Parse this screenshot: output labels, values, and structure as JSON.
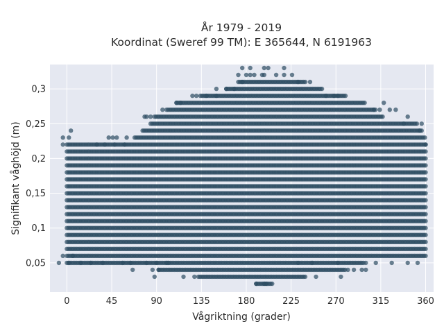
{
  "chart_data": {
    "type": "scatter",
    "title_lines": [
      "År 1979 - 2019",
      "Koordinat (Sweref 99 TM): E 365644, N 6191963"
    ],
    "xlabel": "Vågriktning (grader)",
    "ylabel": "Signifikant våghöjd (m)",
    "xlim": [
      -17,
      368
    ],
    "ylim": [
      0.008,
      0.335
    ],
    "xticks": [
      0,
      45,
      90,
      135,
      180,
      225,
      270,
      315,
      360
    ],
    "xtick_labels": [
      "0",
      "45",
      "90",
      "135",
      "180",
      "225",
      "270",
      "315",
      "360"
    ],
    "yticks": [
      0.05,
      0.1,
      0.15,
      0.2,
      0.25,
      0.3
    ],
    "ytick_labels": [
      "0,05",
      "0,1",
      "0,15",
      "0,2",
      "0,25",
      "0,3"
    ],
    "grid": true,
    "marker_color": "#2e4d63",
    "plot_bg": "#e5e8f1",
    "bands": [
      {
        "y": 0.02,
        "x_min": 190,
        "x_max": 205
      },
      {
        "y": 0.03,
        "x_min": 132,
        "x_max": 240
      },
      {
        "y": 0.04,
        "x_min": 92,
        "x_max": 280
      },
      {
        "y": 0.05,
        "x_min": 0,
        "x_max": 298
      },
      {
        "y": 0.06,
        "x_min": 0,
        "x_max": 360
      },
      {
        "y": 0.07,
        "x_min": 0,
        "x_max": 360
      },
      {
        "y": 0.08,
        "x_min": 0,
        "x_max": 360
      },
      {
        "y": 0.09,
        "x_min": 0,
        "x_max": 360
      },
      {
        "y": 0.1,
        "x_min": 0,
        "x_max": 360
      },
      {
        "y": 0.11,
        "x_min": 0,
        "x_max": 360
      },
      {
        "y": 0.12,
        "x_min": 0,
        "x_max": 360
      },
      {
        "y": 0.13,
        "x_min": 0,
        "x_max": 360
      },
      {
        "y": 0.14,
        "x_min": 0,
        "x_max": 360
      },
      {
        "y": 0.15,
        "x_min": 0,
        "x_max": 360
      },
      {
        "y": 0.16,
        "x_min": 0,
        "x_max": 360
      },
      {
        "y": 0.17,
        "x_min": 0,
        "x_max": 360
      },
      {
        "y": 0.18,
        "x_min": 0,
        "x_max": 360
      },
      {
        "y": 0.19,
        "x_min": 0,
        "x_max": 360
      },
      {
        "y": 0.2,
        "x_min": 0,
        "x_max": 360
      },
      {
        "y": 0.21,
        "x_min": 0,
        "x_max": 360
      },
      {
        "y": 0.22,
        "x_min": 0,
        "x_max": 360
      },
      {
        "y": 0.23,
        "x_min": 68,
        "x_max": 360
      },
      {
        "y": 0.24,
        "x_min": 76,
        "x_max": 356
      },
      {
        "y": 0.25,
        "x_min": 84,
        "x_max": 352
      },
      {
        "y": 0.26,
        "x_min": 88,
        "x_max": 318
      },
      {
        "y": 0.27,
        "x_min": 100,
        "x_max": 310
      },
      {
        "y": 0.28,
        "x_min": 110,
        "x_max": 300
      },
      {
        "y": 0.29,
        "x_min": 134,
        "x_max": 280
      },
      {
        "y": 0.3,
        "x_min": 160,
        "x_max": 255
      },
      {
        "y": 0.31,
        "x_min": 172,
        "x_max": 240
      }
    ],
    "sparse_points": [
      [
        190,
        0.02
      ],
      [
        198,
        0.02
      ],
      [
        200,
        0.02
      ],
      [
        206,
        0.02
      ],
      [
        88,
        0.03
      ],
      [
        117,
        0.03
      ],
      [
        128,
        0.03
      ],
      [
        250,
        0.03
      ],
      [
        275,
        0.03
      ],
      [
        66,
        0.04
      ],
      [
        86,
        0.04
      ],
      [
        92,
        0.04
      ],
      [
        282,
        0.04
      ],
      [
        288,
        0.04
      ],
      [
        296,
        0.04
      ],
      [
        300,
        0.04
      ],
      [
        -8,
        0.05
      ],
      [
        2,
        0.05
      ],
      [
        14,
        0.05
      ],
      [
        24,
        0.05
      ],
      [
        36,
        0.05
      ],
      [
        56,
        0.05
      ],
      [
        64,
        0.05
      ],
      [
        80,
        0.05
      ],
      [
        90,
        0.05
      ],
      [
        100,
        0.05
      ],
      [
        102,
        0.05
      ],
      [
        232,
        0.05
      ],
      [
        246,
        0.05
      ],
      [
        272,
        0.05
      ],
      [
        300,
        0.05
      ],
      [
        310,
        0.05
      ],
      [
        326,
        0.05
      ],
      [
        342,
        0.05
      ],
      [
        352,
        0.05
      ],
      [
        -4,
        0.06
      ],
      [
        6,
        0.06
      ],
      [
        4,
        0.24
      ],
      [
        -4,
        0.23
      ],
      [
        2,
        0.23
      ],
      [
        -4,
        0.22
      ],
      [
        42,
        0.23
      ],
      [
        46,
        0.23
      ],
      [
        50,
        0.23
      ],
      [
        60,
        0.23
      ],
      [
        30,
        0.22
      ],
      [
        38,
        0.22
      ],
      [
        48,
        0.22
      ],
      [
        58,
        0.22
      ],
      [
        338,
        0.25
      ],
      [
        356,
        0.25
      ],
      [
        342,
        0.26
      ],
      [
        354,
        0.24
      ],
      [
        360,
        0.22
      ],
      [
        78,
        0.26
      ],
      [
        80,
        0.26
      ],
      [
        84,
        0.26
      ],
      [
        330,
        0.27
      ],
      [
        314,
        0.27
      ],
      [
        308,
        0.27
      ],
      [
        318,
        0.28
      ],
      [
        324,
        0.27
      ],
      [
        96,
        0.27
      ],
      [
        110,
        0.28
      ],
      [
        114,
        0.28
      ],
      [
        126,
        0.29
      ],
      [
        130,
        0.29
      ],
      [
        140,
        0.29
      ],
      [
        150,
        0.29
      ],
      [
        260,
        0.29
      ],
      [
        268,
        0.29
      ],
      [
        272,
        0.29
      ],
      [
        150,
        0.3
      ],
      [
        160,
        0.3
      ],
      [
        168,
        0.3
      ],
      [
        256,
        0.3
      ],
      [
        176,
        0.31
      ],
      [
        232,
        0.31
      ],
      [
        244,
        0.31
      ],
      [
        172,
        0.32
      ],
      [
        180,
        0.32
      ],
      [
        184,
        0.32
      ],
      [
        188,
        0.32
      ],
      [
        196,
        0.32
      ],
      [
        198,
        0.32
      ],
      [
        210,
        0.32
      ],
      [
        218,
        0.32
      ],
      [
        226,
        0.32
      ],
      [
        176,
        0.33
      ],
      [
        184,
        0.33
      ],
      [
        198,
        0.33
      ],
      [
        202,
        0.33
      ],
      [
        218,
        0.33
      ]
    ]
  }
}
